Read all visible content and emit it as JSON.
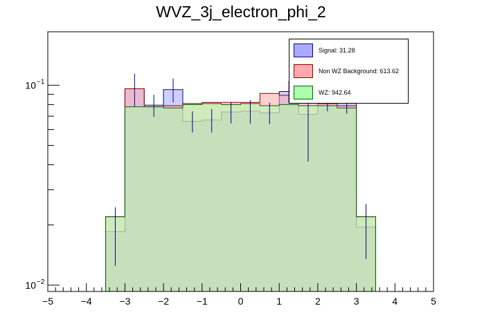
{
  "chart_data": {
    "type": "bar",
    "title": "WVZ_3j_electron_phi_2",
    "xlabel": "",
    "ylabel": "",
    "xlim": [
      -5,
      5
    ],
    "ylim": [
      0.0093,
      0.185
    ],
    "yscale": "log",
    "x_ticks": [
      -5,
      -4,
      -3,
      -2,
      -1,
      0,
      1,
      2,
      3,
      4,
      5
    ],
    "x_tick_labels": [
      "−5",
      "−4",
      "−3",
      "−2",
      "−1",
      "0",
      "1",
      "2",
      "3",
      "4",
      "5"
    ],
    "y_tick_labels": [
      {
        "value": 0.1,
        "base": "10",
        "exp": "−1"
      },
      {
        "value": 0.01,
        "base": "10",
        "exp": "−2"
      }
    ],
    "bin_edges": [
      -3.5,
      -3.0,
      -2.5,
      -2.0,
      -1.5,
      -1.0,
      -0.5,
      0.0,
      0.5,
      1.0,
      1.5,
      2.0,
      2.5,
      3.0,
      3.5
    ],
    "series": [
      {
        "name": "Signal",
        "legend_label": "Signal: 31.28",
        "fill": "#aaaaff",
        "line": "#00008b",
        "values": [
          0.0185,
          0.096,
          0.0795,
          0.095,
          0.066,
          0.067,
          0.0735,
          0.0742,
          0.0728,
          0.093,
          0.0715,
          0.084,
          0.082,
          0.0195
        ],
        "errors": [
          0.006,
          0.018,
          0.01,
          0.013,
          0.008,
          0.009,
          0.009,
          0.01,
          0.009,
          0.012,
          0.03,
          0.01,
          0.01,
          0.006
        ]
      },
      {
        "name": "Non WZ Background",
        "legend_label": "Non WZ Background: 613.62",
        "fill": "#ffaaaa",
        "line": "#8b0000",
        "values": [
          0.022,
          0.096,
          0.078,
          0.079,
          0.081,
          0.082,
          0.082,
          0.082,
          0.091,
          0.089,
          0.087,
          0.081,
          0.079,
          0.022
        ],
        "errors": [
          0.0,
          0.0,
          0.0,
          0.0,
          0.0,
          0.0,
          0.0,
          0.0,
          0.0,
          0.0,
          0.0,
          0.0,
          0.0,
          0.0
        ]
      },
      {
        "name": "WZ",
        "legend_label": "WZ: 942.64",
        "fill": "#aaffaa",
        "line": "#006400",
        "values": [
          0.022,
          0.078,
          0.078,
          0.077,
          0.08,
          0.081,
          0.08,
          0.081,
          0.079,
          0.08,
          0.079,
          0.079,
          0.077,
          0.022
        ],
        "errors": [
          0.0,
          0.0,
          0.0,
          0.0,
          0.0,
          0.0,
          0.0,
          0.0,
          0.0,
          0.0,
          0.0,
          0.0,
          0.0,
          0.0
        ]
      }
    ],
    "legend_position": "top-right",
    "grid": false
  }
}
